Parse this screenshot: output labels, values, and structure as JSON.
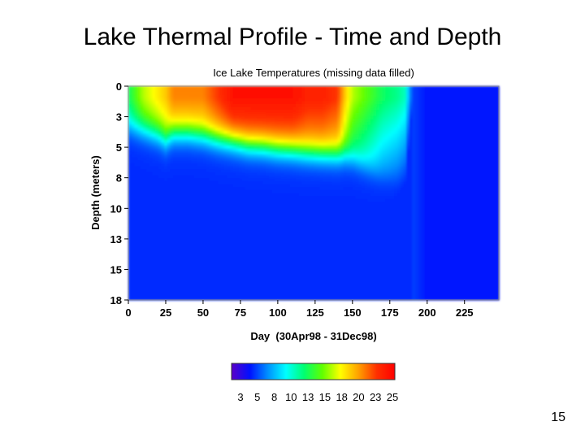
{
  "slide": {
    "title": "Lake Thermal Profile - Time and Depth",
    "page_number": "15"
  },
  "chart_data": {
    "type": "heatmap",
    "title": "Ice Lake Temperatures (missing data filled)",
    "xlabel": "Day  (30Apr98 - 31Dec98)",
    "ylabel": "Depth (meters)",
    "xlim": [
      0,
      248
    ],
    "ylim": [
      0,
      18
    ],
    "y_inverted": true,
    "x_ticks": [
      "0",
      "25",
      "50",
      "75",
      "100",
      "125",
      "150",
      "175",
      "200",
      "225"
    ],
    "x_tick_values": [
      0,
      25,
      50,
      75,
      100,
      125,
      150,
      175,
      200,
      225
    ],
    "y_ticks": [
      "0",
      "3",
      "5",
      "8",
      "10",
      "13",
      "15",
      "18"
    ],
    "y_tick_values": [
      0,
      2.57,
      5.14,
      7.71,
      10.29,
      12.86,
      15.43,
      18
    ],
    "colorbar": {
      "labels": [
        "3",
        "5",
        "8",
        "10",
        "13",
        "15",
        "18",
        "20",
        "23",
        "25"
      ],
      "min": 1,
      "max": 27,
      "colors": [
        "#5a00c8",
        "#0010ff",
        "#0090ff",
        "#00ffff",
        "#00ff70",
        "#60ff00",
        "#ffff00",
        "#ffa000",
        "#ff3000",
        "#ff0000"
      ]
    },
    "profile": {
      "description_free": true,
      "days": [
        0,
        10,
        20,
        25,
        30,
        40,
        50,
        60,
        70,
        80,
        90,
        100,
        110,
        120,
        130,
        140,
        145,
        150,
        160,
        170,
        180,
        185,
        190,
        200,
        225,
        248
      ],
      "surface_temp": [
        13,
        17,
        19,
        20,
        22,
        22,
        22,
        24,
        26,
        26,
        26,
        26,
        26,
        25,
        25,
        24,
        20,
        17,
        15,
        13,
        12,
        11,
        5,
        4,
        4,
        4
      ],
      "thermocline_depth": [
        3.5,
        3.8,
        4.2,
        4.6,
        4.0,
        4.0,
        4.2,
        4.5,
        4.7,
        5.0,
        5.1,
        5.3,
        5.4,
        5.6,
        5.7,
        5.8,
        5.9,
        6.2,
        7.0,
        7.9,
        8.5,
        9.0,
        18,
        18,
        18,
        18
      ],
      "bottom_temp": [
        4.5,
        4.5,
        4.5,
        4.5,
        4.5,
        4.5,
        4.5,
        4.5,
        4.5,
        4.5,
        4.5,
        4.5,
        4.5,
        4.5,
        4.5,
        4.5,
        4.5,
        4.5,
        4.5,
        4.5,
        4.5,
        4.5,
        4.5,
        4.0,
        4.0,
        4.0
      ]
    }
  }
}
